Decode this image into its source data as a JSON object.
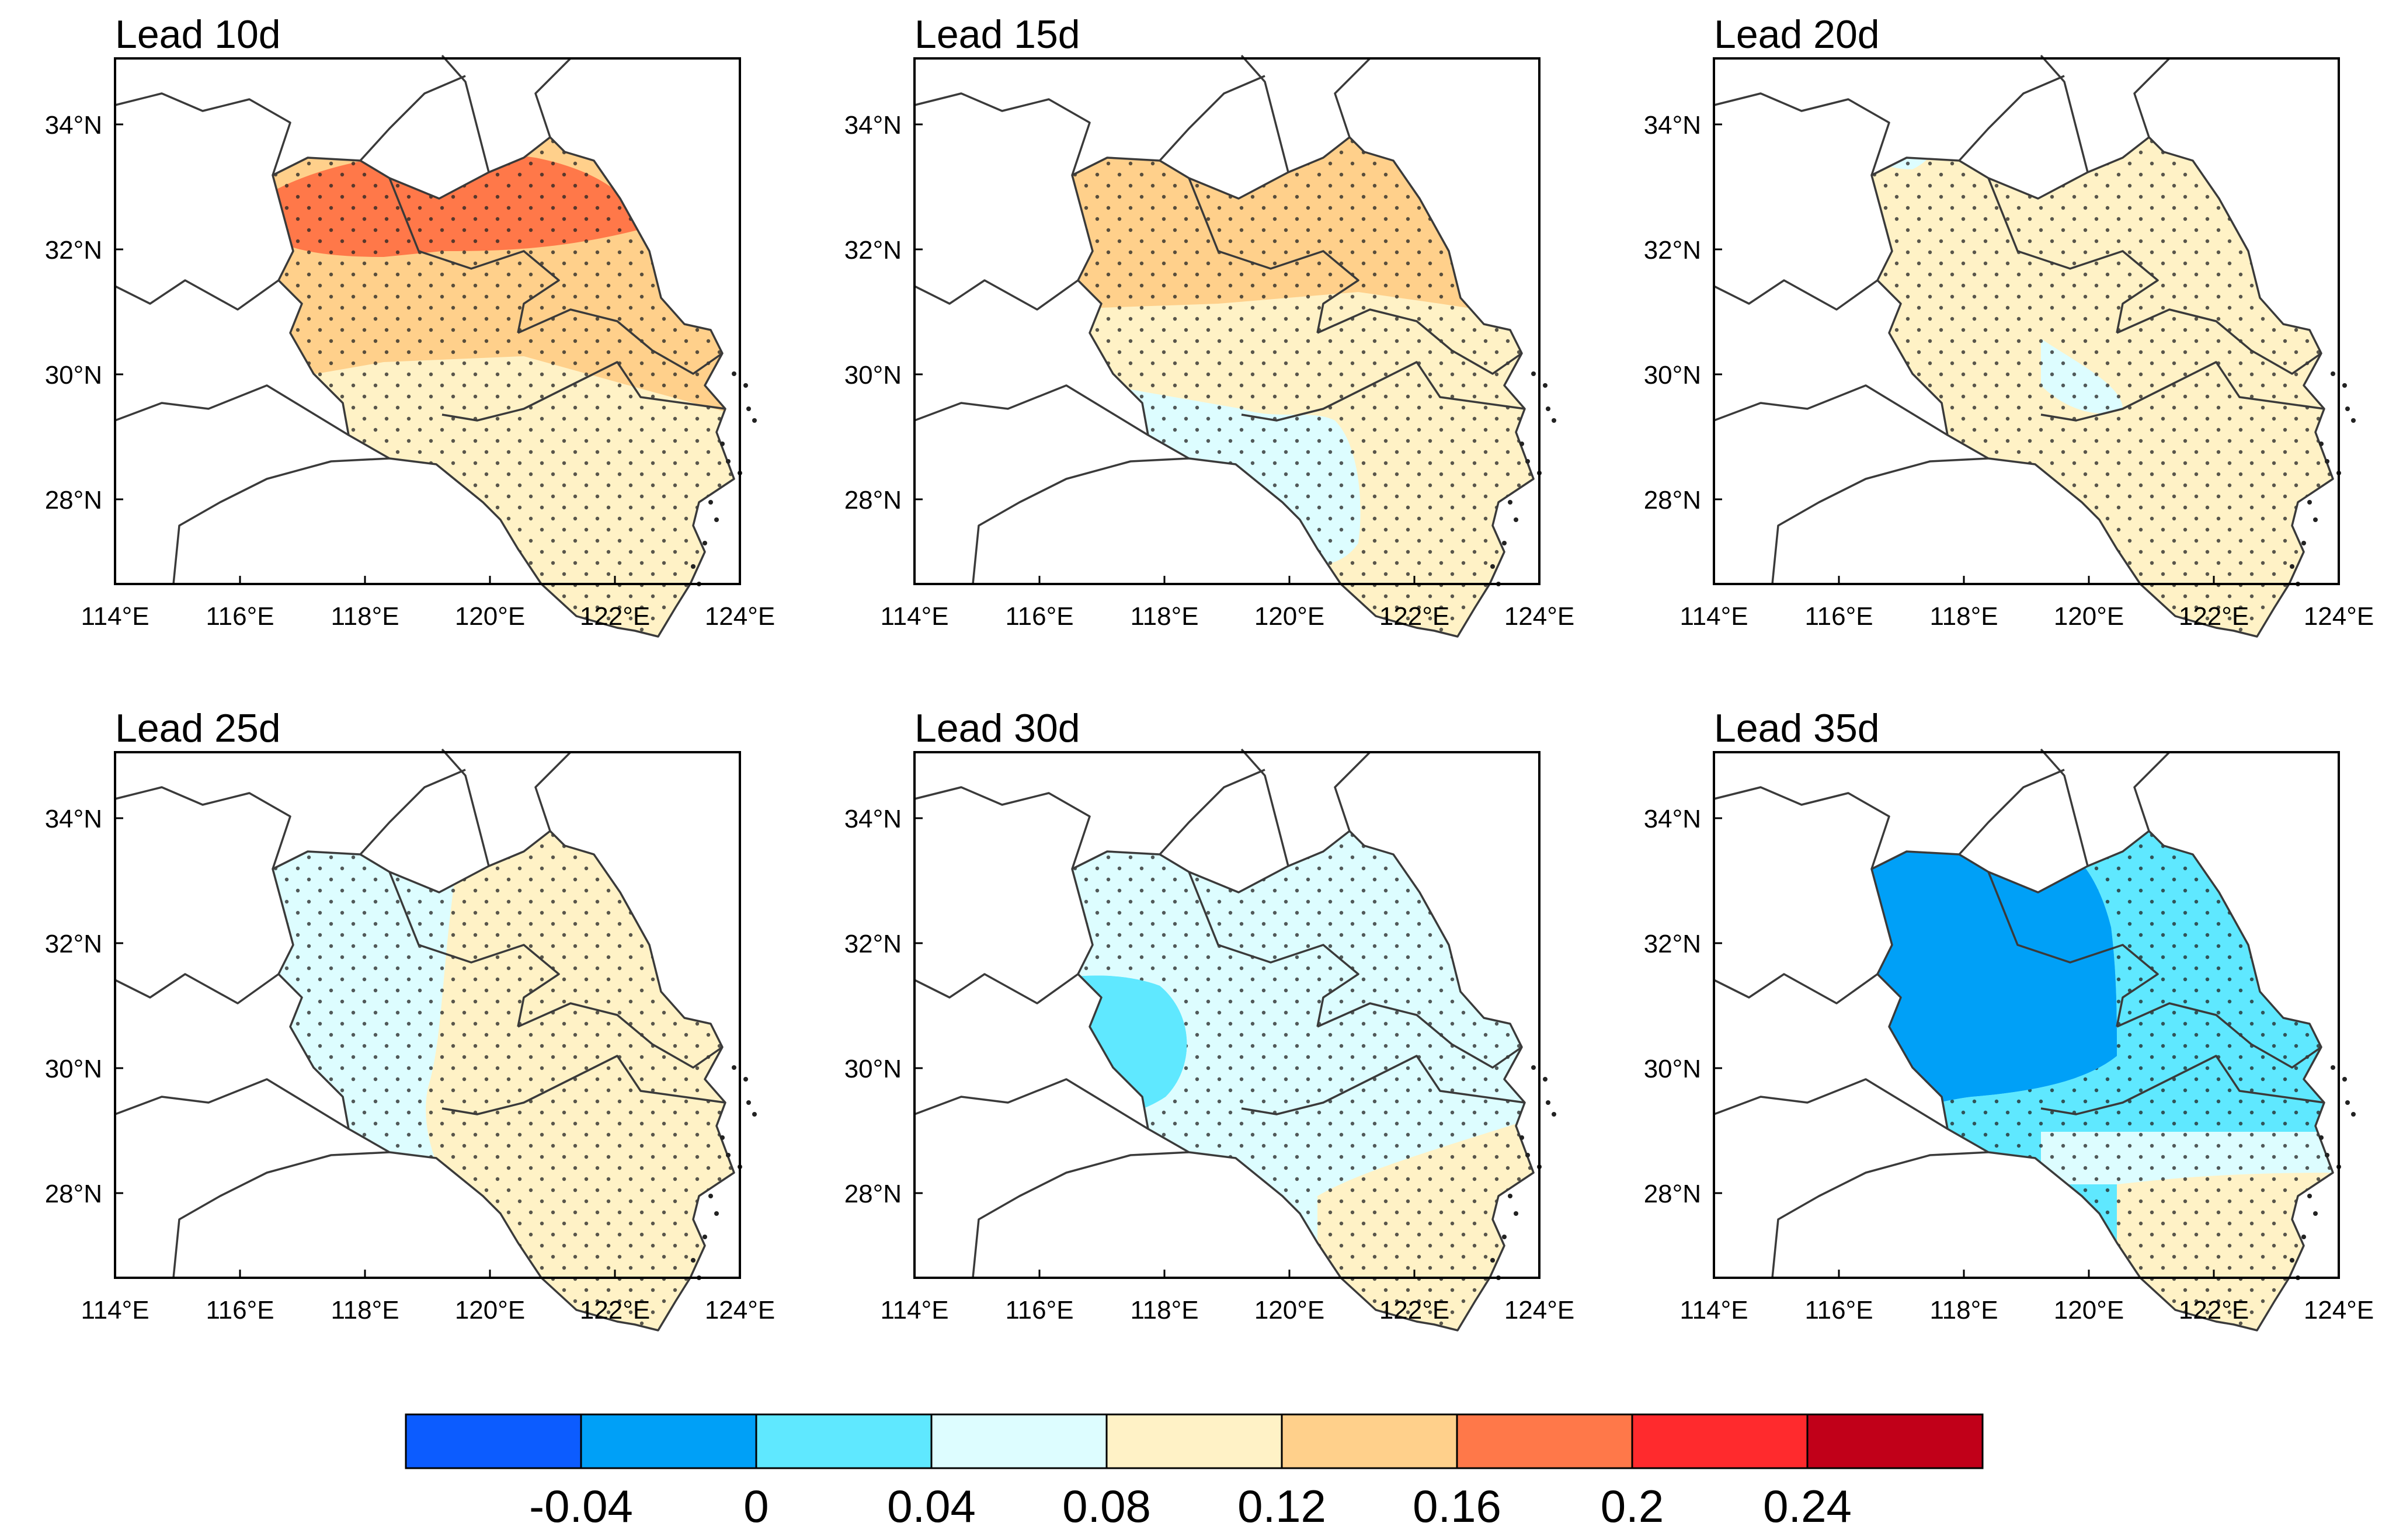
{
  "figure": {
    "colorbar": {
      "colors": [
        "#0c5cff",
        "#00a0f7",
        "#5fe8ff",
        "#ddfdff",
        "#fff2c6",
        "#ffd08b",
        "#ff7849",
        "#ff2a2d",
        "#c10019"
      ],
      "labels": [
        "-0.04",
        "0",
        "0.04",
        "0.08",
        "0.12",
        "0.16",
        "0.2",
        "0.24"
      ]
    },
    "axes": {
      "lon_ticks": [
        "114°E",
        "116°E",
        "118°E",
        "120°E",
        "122°E",
        "124°E"
      ],
      "lat_ticks": [
        "34°N",
        "32°N",
        "30°N",
        "28°N"
      ]
    },
    "panels": [
      {
        "title": "Lead 10d",
        "base": "#ffd08b",
        "south": "#fff2c6",
        "blob": "#ff7849",
        "stipple": true
      },
      {
        "title": "Lead 15d",
        "base": "#ffd08b",
        "south": "#fff2c6",
        "blob": "#ddfdff",
        "stipple": true
      },
      {
        "title": "Lead 20d",
        "base": "#fff2c6",
        "south": "#fff2c6",
        "blob": "#ddfdff",
        "stipple": true
      },
      {
        "title": "Lead 25d",
        "base": "#ddfdff",
        "south": "#fff2c6",
        "blob": "#fff2c6",
        "stipple": true
      },
      {
        "title": "Lead 30d",
        "base": "#ddfdff",
        "south": "#fff2c6",
        "blob": "#5fe8ff",
        "stipple": true
      },
      {
        "title": "Lead 35d",
        "base": "#5fe8ff",
        "south": "#fff2c6",
        "blob": "#00a0f7",
        "stipple": true
      }
    ]
  }
}
